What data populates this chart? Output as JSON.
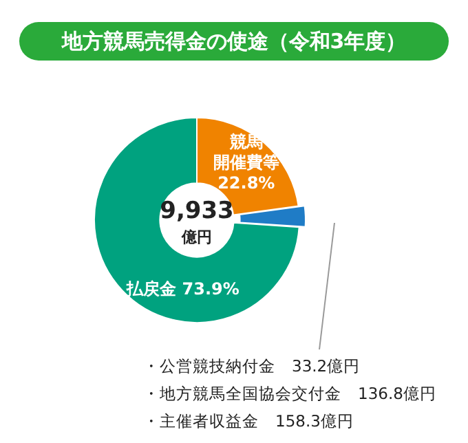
{
  "chart_data": {
    "type": "donut",
    "title": "地方競馬売得金の使途（令和3年度）",
    "categories": [
      "競馬開催費等",
      null,
      "払戻金"
    ],
    "values": [
      22.8,
      3.3,
      73.9
    ],
    "colors": [
      "#f08300",
      "#1f7cc6",
      "#00a27f"
    ],
    "value_labels": [
      "22.8%",
      null,
      "73.9%"
    ],
    "annotations": [
      "9,933\n億円",
      "・公営競技納付金　33.2億円",
      "・地方競馬全国協会交付金　136.8億円",
      "・主催者収益金　158.3億円"
    ]
  }
}
